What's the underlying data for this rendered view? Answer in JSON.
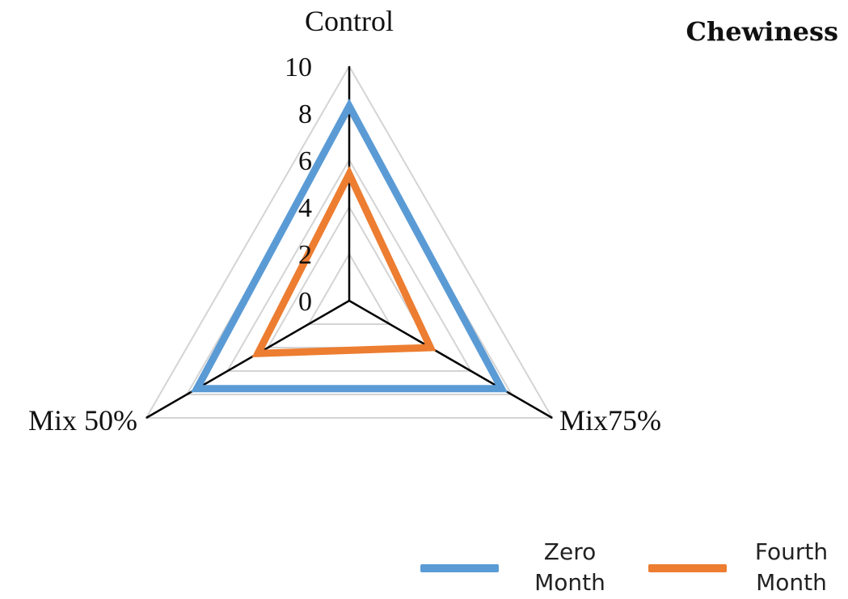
{
  "chart_data": {
    "type": "radar",
    "title": "Chewiness",
    "axes": [
      "Control",
      "Mix75%",
      "Mix 50%"
    ],
    "r_range": [
      0,
      10
    ],
    "ticks": [
      "0",
      "2",
      "4",
      "6",
      "8",
      "10"
    ],
    "grid": true,
    "legend_position": "bottom-right",
    "series": [
      {
        "name": "Zero Month",
        "values": [
          8.3,
          7.5,
          7.5
        ],
        "color": "#5B9BD5"
      },
      {
        "name": "Fourth Month",
        "values": [
          5.4,
          4.0,
          4.5
        ],
        "color": "#ED7D31"
      }
    ],
    "legend": [
      {
        "line1": "Zero",
        "line2": "Month"
      },
      {
        "line1": "Fourth",
        "line2": "Month"
      }
    ]
  }
}
